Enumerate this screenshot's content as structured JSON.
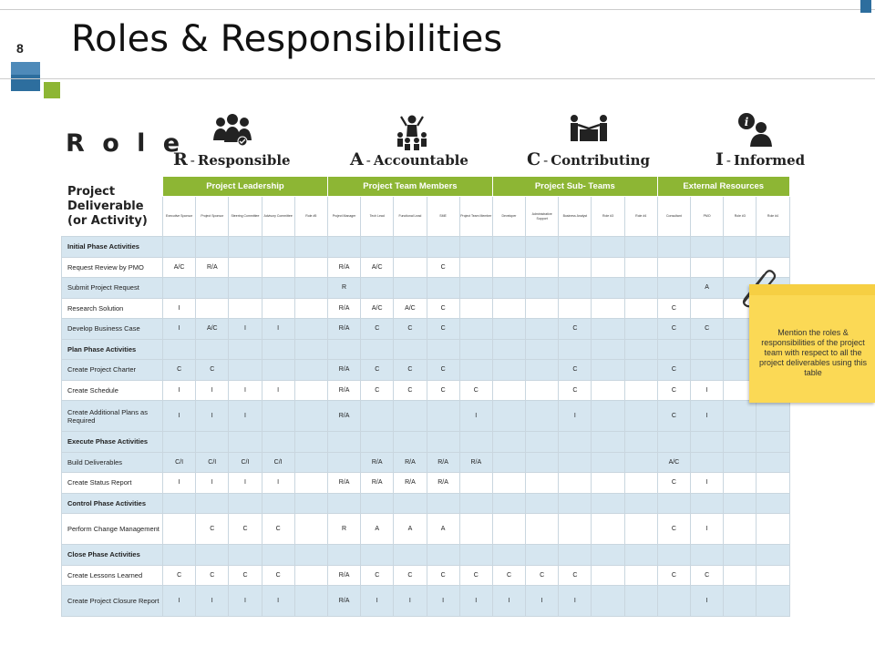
{
  "slide_number": "8",
  "title": "Roles & Responsibilities",
  "role_label": "R o l e",
  "roles": [
    {
      "letter": "R",
      "name": "Responsible",
      "icon": "team-meeting-icon"
    },
    {
      "letter": "A",
      "name": "Accountable",
      "icon": "leader-presenting-icon"
    },
    {
      "letter": "C",
      "name": "Contributing",
      "icon": "handshake-icon"
    },
    {
      "letter": "I",
      "name": "Informed",
      "icon": "person-info-icon"
    }
  ],
  "deliverable_header": "Project Deliverable (or Activity)",
  "groups": [
    "Project Leadership",
    "Project Team Members",
    "Project Sub- Teams",
    "External Resources"
  ],
  "subheaders": [
    "Executive Sponsor",
    "Project Sponsor",
    "Steering Committee",
    "Advisory Committee",
    "Role #5",
    "Project Manager",
    "Tech Lead",
    "Functional Lead",
    "SME",
    "Project Team Member",
    "Developer",
    "Administrative Support",
    "Business Analyst",
    "Role #3",
    "Role #4",
    "Consultant",
    "PMO",
    "Role #3",
    "Role #4"
  ],
  "rows": [
    {
      "label": "Initial Phase Activities",
      "phase": true,
      "cells": []
    },
    {
      "label": "Request Review by PMO",
      "cells": [
        "A/C",
        "R/A",
        "",
        "",
        "",
        "R/A",
        "A/C",
        "",
        "C",
        "",
        "",
        "",
        "",
        "",
        "",
        "",
        "",
        "",
        ""
      ]
    },
    {
      "label": "Submit Project Request",
      "cells": [
        "",
        "",
        "",
        "",
        "",
        "R",
        "",
        "",
        "",
        "",
        "",
        "",
        "",
        "",
        "",
        "",
        "A",
        "",
        ""
      ]
    },
    {
      "label": "Research Solution",
      "cells": [
        "I",
        "",
        "",
        "",
        "",
        "R/A",
        "A/C",
        "A/C",
        "C",
        "",
        "",
        "",
        "",
        "",
        "",
        "C",
        "",
        "",
        ""
      ]
    },
    {
      "label": "Develop Business Case",
      "cells": [
        "I",
        "A/C",
        "I",
        "I",
        "",
        "R/A",
        "C",
        "C",
        "C",
        "",
        "",
        "",
        "C",
        "",
        "",
        "C",
        "C",
        "",
        ""
      ]
    },
    {
      "label": "Plan Phase Activities",
      "phase": true,
      "cells": []
    },
    {
      "label": "Create Project Charter",
      "cells": [
        "C",
        "C",
        "",
        "",
        "",
        "R/A",
        "C",
        "C",
        "C",
        "",
        "",
        "",
        "C",
        "",
        "",
        "C",
        "",
        "",
        ""
      ]
    },
    {
      "label": "Create Schedule",
      "cells": [
        "I",
        "I",
        "I",
        "I",
        "",
        "R/A",
        "C",
        "C",
        "C",
        "C",
        "",
        "",
        "C",
        "",
        "",
        "C",
        "I",
        "",
        ""
      ]
    },
    {
      "label": "Create Additional Plans as Required",
      "tall": true,
      "cells": [
        "I",
        "I",
        "I",
        "",
        "",
        "R/A",
        "",
        "",
        "",
        "I",
        "",
        "",
        "I",
        "",
        "",
        "C",
        "I",
        "",
        ""
      ]
    },
    {
      "label": "Execute Phase Activities",
      "phase": true,
      "cells": []
    },
    {
      "label": "Build Deliverables",
      "cells": [
        "C/I",
        "C/I",
        "C/I",
        "C/I",
        "",
        "",
        "R/A",
        "R/A",
        "R/A",
        "R/A",
        "",
        "",
        "",
        "",
        "",
        "A/C",
        "",
        "",
        ""
      ]
    },
    {
      "label": "Create Status Report",
      "cells": [
        "I",
        "I",
        "I",
        "I",
        "",
        "R/A",
        "R/A",
        "R/A",
        "R/A",
        "",
        "",
        "",
        "",
        "",
        "",
        "C",
        "I",
        "",
        ""
      ]
    },
    {
      "label": "Control Phase Activities",
      "phase": true,
      "cells": []
    },
    {
      "label": "Perform Change Management",
      "tall": true,
      "cells": [
        "",
        "C",
        "C",
        "C",
        "",
        "R",
        "A",
        "A",
        "A",
        "",
        "",
        "",
        "",
        "",
        "",
        "C",
        "I",
        "",
        ""
      ]
    },
    {
      "label": "Close Phase Activities",
      "phase": true,
      "cells": []
    },
    {
      "label": "Create Lessons Learned",
      "cells": [
        "C",
        "C",
        "C",
        "C",
        "",
        "R/A",
        "C",
        "C",
        "C",
        "C",
        "C",
        "C",
        "C",
        "",
        "",
        "C",
        "C",
        "",
        ""
      ]
    },
    {
      "label": "Create Project Closure Report",
      "tall": true,
      "cells": [
        "I",
        "I",
        "I",
        "I",
        "",
        "R/A",
        "I",
        "I",
        "I",
        "I",
        "I",
        "I",
        "I",
        "",
        "",
        "",
        "I",
        "",
        ""
      ]
    }
  ],
  "note": {
    "text": "Mention the roles & responsibilities of the project team with respect to all the project deliverables using this table"
  },
  "colors": {
    "accent_green": "#8db634",
    "accent_blue": "#2d6e9e",
    "row_shade": "#d6e6f0",
    "note_yellow": "#fbd955"
  }
}
